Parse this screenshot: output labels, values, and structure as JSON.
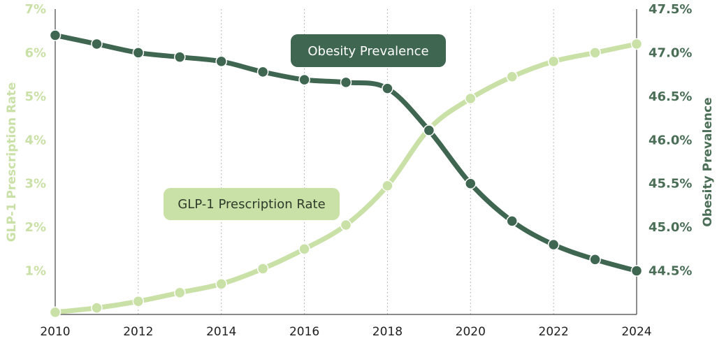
{
  "chart_data": {
    "type": "line",
    "x": [
      2010,
      2011,
      2012,
      2013,
      2014,
      2015,
      2016,
      2017,
      2018,
      2019,
      2020,
      2021,
      2022,
      2023,
      2024
    ],
    "x_ticks": [
      "2010",
      "2012",
      "2014",
      "2016",
      "2018",
      "2020",
      "2022",
      "2024"
    ],
    "xlim": [
      2010,
      2024
    ],
    "y_left": {
      "label": "GLP-1 Prescription Rate",
      "lim": [
        0.0,
        7.0
      ],
      "ticks": [
        "1%",
        "2%",
        "3%",
        "4%",
        "5%",
        "6%",
        "7%"
      ],
      "tick_values": [
        1,
        2,
        3,
        4,
        5,
        6,
        7
      ]
    },
    "y_right": {
      "label": "Obesity Prevalence",
      "lim": [
        44.0,
        47.5
      ],
      "ticks": [
        "44.5%",
        "45.0%",
        "45.5%",
        "46.0%",
        "46.5%",
        "47.0%",
        "47.5%"
      ],
      "tick_values": [
        44.5,
        45.0,
        45.5,
        46.0,
        46.5,
        47.0,
        47.5
      ]
    },
    "grid": "vertical dotted",
    "series": [
      {
        "name": "GLP-1 Prescription Rate",
        "axis": "left",
        "color": "#c9e0a6",
        "values": [
          0.05,
          0.15,
          0.3,
          0.5,
          0.7,
          1.05,
          1.5,
          2.05,
          2.95,
          4.25,
          4.95,
          5.45,
          5.8,
          6.0,
          6.2
        ]
      },
      {
        "name": "Obesity Prevalence",
        "axis": "right",
        "color": "#3f6650",
        "values": [
          47.2,
          47.1,
          47.0,
          46.95,
          46.9,
          46.78,
          46.69,
          46.66,
          46.59,
          46.11,
          45.5,
          45.07,
          44.8,
          44.63,
          44.5
        ]
      }
    ]
  }
}
